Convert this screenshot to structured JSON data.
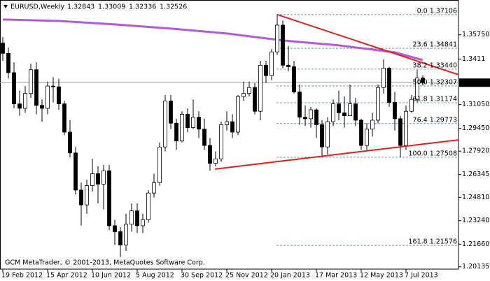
{
  "chart_data": {
    "type": "candlestick",
    "title": "EURUSD,Weekly",
    "footer": "GCM MetaTrader, © 2001-2013, MetaQuotes Software Corp.",
    "categories": [
      "19 Feb 2012",
      null,
      null,
      null,
      null,
      null,
      null,
      null,
      "15 Apr 2012",
      null,
      null,
      null,
      null,
      null,
      null,
      null,
      "10 Jun 2012",
      null,
      null,
      null,
      null,
      null,
      null,
      null,
      "5 Aug 2012",
      null,
      null,
      null,
      null,
      null,
      null,
      null,
      "30 Sep 2012",
      null,
      null,
      null,
      null,
      null,
      null,
      null,
      "25 Nov 2012",
      null,
      null,
      null,
      null,
      null,
      null,
      null,
      "20 Jan 2013",
      null,
      null,
      null,
      null,
      null,
      null,
      null,
      "17 Mar 2013",
      null,
      null,
      null,
      null,
      null,
      null,
      null,
      "12 May 2013",
      null,
      null,
      null,
      null,
      null,
      null,
      null,
      "7 Jul 2013",
      null,
      null,
      null
    ],
    "open": [
      1.352,
      1.345,
      1.332,
      1.311,
      1.308,
      1.318,
      1.334,
      1.31,
      1.308,
      1.323,
      1.3225,
      1.311,
      1.292,
      1.278,
      1.253,
      1.243,
      1.256,
      1.264,
      1.257,
      1.266,
      1.229,
      1.225,
      1.216,
      1.23,
      1.239,
      1.229,
      1.233,
      1.251,
      1.258,
      1.282,
      1.313,
      1.298,
      1.286,
      1.304,
      1.295,
      1.302,
      1.294,
      1.283,
      1.271,
      1.274,
      1.297,
      1.299,
      1.292,
      1.316,
      1.318,
      1.322,
      1.306,
      1.337,
      1.33,
      1.346,
      1.364,
      1.337,
      1.336,
      1.319,
      1.302,
      1.301,
      1.307,
      1.297,
      1.282,
      1.299,
      1.311,
      1.305,
      1.303,
      1.311,
      1.3,
      1.283,
      1.294,
      1.3,
      1.322,
      1.335,
      1.312,
      1.301,
      1.283,
      1.306,
      1.314,
      1.32843
    ],
    "high": [
      1.356,
      1.349,
      1.339,
      1.32,
      1.323,
      1.338,
      1.339,
      1.314,
      1.326,
      1.329,
      1.328,
      1.313,
      1.3,
      1.282,
      1.258,
      1.26,
      1.274,
      1.269,
      1.27,
      1.27,
      1.233,
      1.228,
      1.237,
      1.244,
      1.244,
      1.237,
      1.253,
      1.264,
      1.285,
      1.317,
      1.317,
      1.301,
      1.306,
      1.308,
      1.314,
      1.306,
      1.301,
      1.288,
      1.279,
      1.299,
      1.306,
      1.304,
      1.317,
      1.326,
      1.326,
      1.325,
      1.34,
      1.34,
      1.348,
      1.3711,
      1.367,
      1.35,
      1.34,
      1.324,
      1.31,
      1.309,
      1.308,
      1.3,
      1.302,
      1.314,
      1.32,
      1.316,
      1.324,
      1.315,
      1.301,
      1.298,
      1.305,
      1.324,
      1.341,
      1.336,
      1.319,
      1.303,
      1.31,
      1.317,
      1.334,
      1.33009
    ],
    "low": [
      1.34,
      1.328,
      1.308,
      1.303,
      1.305,
      1.315,
      1.304,
      1.299,
      1.304,
      1.312,
      1.307,
      1.29,
      1.275,
      1.25,
      1.229,
      1.237,
      1.252,
      1.244,
      1.24,
      1.226,
      1.216,
      1.208,
      1.212,
      1.225,
      1.224,
      1.224,
      1.231,
      1.248,
      1.256,
      1.279,
      1.294,
      1.28,
      1.285,
      1.292,
      1.294,
      1.288,
      1.28,
      1.266,
      1.269,
      1.272,
      1.293,
      1.288,
      1.29,
      1.313,
      1.316,
      1.304,
      1.3,
      1.325,
      1.327,
      1.344,
      1.335,
      1.333,
      1.318,
      1.297,
      1.296,
      1.295,
      1.288,
      1.2751,
      1.277,
      1.296,
      1.3,
      1.295,
      1.303,
      1.296,
      1.28,
      1.28,
      1.289,
      1.298,
      1.318,
      1.309,
      1.293,
      1.275,
      1.28,
      1.305,
      1.312,
      1.32336
    ],
    "close": [
      1.345,
      1.332,
      1.311,
      1.308,
      1.318,
      1.334,
      1.31,
      1.308,
      1.323,
      1.3225,
      1.311,
      1.292,
      1.278,
      1.253,
      1.243,
      1.256,
      1.264,
      1.257,
      1.266,
      1.229,
      1.225,
      1.216,
      1.23,
      1.239,
      1.229,
      1.233,
      1.251,
      1.258,
      1.282,
      1.313,
      1.298,
      1.286,
      1.304,
      1.295,
      1.302,
      1.294,
      1.283,
      1.271,
      1.274,
      1.297,
      1.299,
      1.292,
      1.316,
      1.318,
      1.322,
      1.306,
      1.337,
      1.33,
      1.346,
      1.364,
      1.337,
      1.336,
      1.319,
      1.302,
      1.301,
      1.307,
      1.297,
      1.282,
      1.299,
      1.311,
      1.305,
      1.303,
      1.311,
      1.3,
      1.283,
      1.294,
      1.3,
      1.322,
      1.335,
      1.312,
      1.301,
      1.283,
      1.306,
      1.314,
      1.3284,
      1.32526
    ],
    "moving_average": {
      "color": "#b35ad6",
      "x": [
        0,
        10,
        20,
        30,
        40,
        50,
        60,
        70,
        75
      ],
      "values": [
        1.3678,
        1.3668,
        1.3645,
        1.3617,
        1.3584,
        1.3537,
        1.3504,
        1.3457,
        1.3405
      ]
    },
    "trendlines": {
      "color": "#e02020",
      "lines": [
        {
          "x": [
            49,
            81.4
          ],
          "y": [
            1.3711,
            1.3306
          ]
        },
        {
          "x": [
            37.9,
            81.4
          ],
          "y": [
            1.2671,
            1.2868
          ]
        }
      ]
    },
    "fibonacci": {
      "color": "#5a7fb0",
      "levels": [
        {
          "value": 1.37106,
          "label": "0.0 1.37106"
        },
        {
          "value": 1.34841,
          "label": "23.6 1.34841"
        },
        {
          "value": 1.3344,
          "label": "38.2 1.33440"
        },
        {
          "value": 1.32307,
          "label": "50.0 1.32307"
        },
        {
          "value": 1.31174,
          "label": "61.8 1.31174"
        },
        {
          "value": 1.29773,
          "label": "76.4 1.29773"
        },
        {
          "value": 1.27508,
          "label": "100.0 1.27508"
        },
        {
          "value": 1.21576,
          "label": "161.8 1.21576"
        }
      ]
    },
    "ylim": [
      1.1998,
      1.3809
    ],
    "yticks": [
      {
        "value": 1.3575,
        "label": "1.35750"
      },
      1.3411,
      {
        "value": 1.3105,
        "label": "1.31050"
      },
      {
        "value": 1.2945,
        "label": "1.29450"
      },
      {
        "value": 1.2792,
        "label": "1.27920"
      },
      1.26345,
      {
        "value": 1.2481,
        "label": "1.24810"
      },
      {
        "value": 1.2324,
        "label": "1.23240"
      },
      {
        "value": 1.2166,
        "label": "1.21660"
      },
      1.20135
    ],
    "up_color": "#ffffff",
    "down_color": "#000000"
  }
}
